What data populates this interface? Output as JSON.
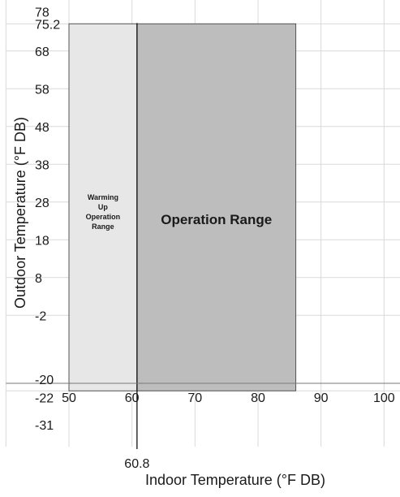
{
  "chart_data": {
    "type": "area",
    "xlabel": "Indoor Temperature (°F DB)",
    "ylabel": "Outdoor Temperature (°F DB)",
    "xlim": [
      40,
      107
    ],
    "ylim": [
      -31,
      78
    ],
    "x_ticks": [
      50,
      60,
      70,
      80,
      90,
      100
    ],
    "y_ticks": [
      78,
      75.2,
      68,
      58,
      48,
      38,
      28,
      18,
      8,
      -2,
      -20,
      -22,
      -31
    ],
    "x_special_tick": 60.8,
    "grid": true,
    "regions": [
      {
        "name": "Warming Up Operation Range",
        "label_lines": [
          "Warming",
          "Up",
          "Operation",
          "Range"
        ],
        "x": [
          50,
          60.8
        ],
        "y": [
          -22,
          75.2
        ],
        "color": "#e7e7e7"
      },
      {
        "name": "Operation Range",
        "label_lines": [
          "Operation Range"
        ],
        "x": [
          60.8,
          86
        ],
        "y": [
          -22,
          75.2
        ],
        "color": "#bdbdbd"
      }
    ],
    "reference_lines": [
      {
        "orientation": "vertical",
        "x": 60.8
      },
      {
        "orientation": "horizontal",
        "y": -20
      }
    ]
  }
}
